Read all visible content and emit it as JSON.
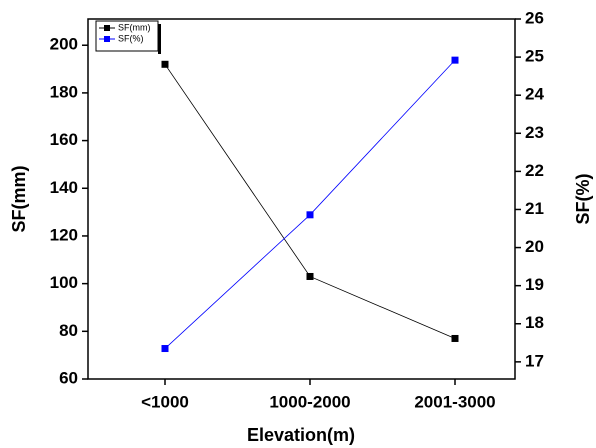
{
  "chart_data": {
    "type": "line",
    "x_label": "Elevation(m)",
    "y_label": "SF(mm)",
    "y2_label": "SF(%)",
    "categories": [
      "<1000",
      "1000-2000",
      "2001-3000"
    ],
    "series": [
      {
        "name": "SF(mm)",
        "color": "#000000",
        "values": [
          192,
          103,
          77
        ]
      },
      {
        "name": "SF(%)",
        "color": "#0000ff",
        "axis": "y2",
        "values": [
          17.35,
          20.86,
          24.92
        ]
      }
    ],
    "ylim": [
      60,
      211
    ],
    "yticks": [
      60,
      80,
      100,
      120,
      140,
      160,
      180,
      200
    ],
    "y2lim": [
      16.55,
      26
    ],
    "y2ticks": [
      17,
      18,
      19,
      20,
      21,
      22,
      23,
      24,
      25,
      26
    ],
    "legend": "top-left"
  }
}
